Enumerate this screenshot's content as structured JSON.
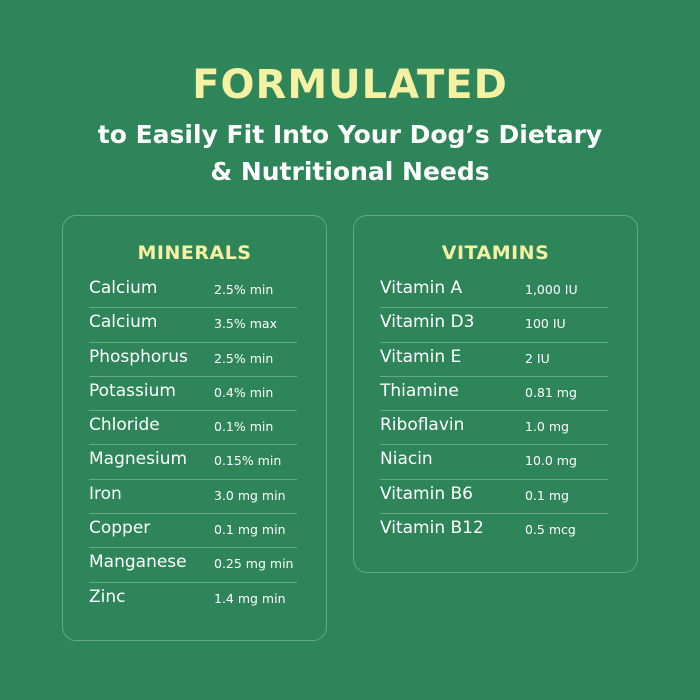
{
  "header": {
    "title": "FORMULATED",
    "subtitle_line1": "to Easily Fit Into Your Dog’s Dietary",
    "subtitle_line2": "&  Nutritional Needs"
  },
  "colors": {
    "background": "#2e855a",
    "accent": "#f4f1a3"
  },
  "minerals": {
    "heading": "MINERALS",
    "items": [
      {
        "name": "Calcium",
        "value": "2.5% min"
      },
      {
        "name": "Calcium",
        "value": "3.5% max"
      },
      {
        "name": "Phosphorus",
        "value": "2.5% min"
      },
      {
        "name": "Potassium",
        "value": "0.4% min"
      },
      {
        "name": "Chloride",
        "value": "0.1% min"
      },
      {
        "name": "Magnesium",
        "value": "0.15% min"
      },
      {
        "name": "Iron",
        "value": "3.0 mg min"
      },
      {
        "name": "Copper",
        "value": "0.1 mg min"
      },
      {
        "name": "Manganese",
        "value": "0.25 mg min"
      },
      {
        "name": "Zinc",
        "value": "1.4 mg min"
      }
    ]
  },
  "vitamins": {
    "heading": "VITAMINS",
    "items": [
      {
        "name": "Vitamin A",
        "value": "1,000 IU"
      },
      {
        "name": "Vitamin D3",
        "value": "100 IU"
      },
      {
        "name": "Vitamin E",
        "value": "2 IU"
      },
      {
        "name": "Thiamine",
        "value": "0.81 mg"
      },
      {
        "name": "Riboflavin",
        "value": "1.0 mg"
      },
      {
        "name": "Niacin",
        "value": "10.0 mg"
      },
      {
        "name": "Vitamin B6",
        "value": "0.1 mg"
      },
      {
        "name": "Vitamin B12",
        "value": "0.5 mcg"
      }
    ]
  }
}
